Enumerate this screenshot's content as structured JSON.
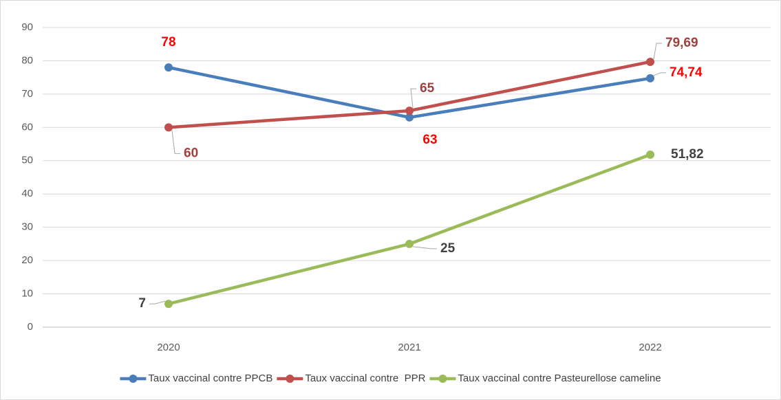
{
  "chart_data": {
    "type": "line",
    "categories": [
      "2020",
      "2021",
      "2022"
    ],
    "series": [
      {
        "name": "Taux vaccinal contre PPCB",
        "color": "#4a7ebb",
        "label_color": "#ff0000",
        "values": [
          78,
          63,
          74.74
        ],
        "value_labels": [
          "78",
          "63",
          "74,74"
        ]
      },
      {
        "name": "Taux vaccinal contre  PPR",
        "color": "#c0504d",
        "label_color": "#a0403d",
        "values": [
          60,
          65,
          79.69
        ],
        "value_labels": [
          "60",
          "65",
          "79,69"
        ]
      },
      {
        "name": "Taux vaccinal contre Pasteurellose cameline",
        "color": "#9bbb59",
        "label_color": "#404040",
        "values": [
          7,
          25,
          51.82
        ],
        "value_labels": [
          "7",
          "25",
          "51,82"
        ]
      }
    ],
    "ylim": [
      0,
      90
    ],
    "yticks": [
      0,
      10,
      20,
      30,
      40,
      50,
      60,
      70,
      80,
      90
    ],
    "grid": true,
    "legend": "bottom"
  }
}
